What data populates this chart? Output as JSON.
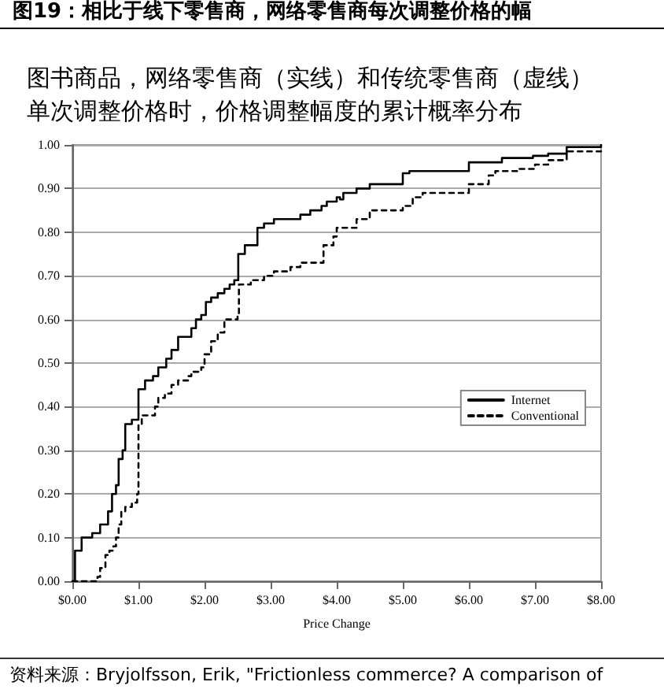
{
  "chart_data": {
    "type": "step",
    "title": "图书商品，网络零售商（实线）和传统零售商（虚线）单次调整价格时，价格调整幅度的累计概率分布",
    "xlabel": "Price Change",
    "annotations": [
      "图19：相比于线下零售商，网络零售商每次调整价格的幅",
      "资料来源：Bryjolfsson, Erik, \"Frictionless commerce? A comparison of"
    ],
    "series": [
      {
        "name": "Internet",
        "color": "#000000",
        "line_style": "solid",
        "x": [
          0,
          0.04,
          0.14,
          0.3,
          0.42,
          0.54,
          0.6,
          0.66,
          0.7,
          0.76,
          0.8,
          0.9,
          1.0,
          1.1,
          1.22,
          1.3,
          1.42,
          1.5,
          1.6,
          1.8,
          1.87,
          1.95,
          2.02,
          2.1,
          2.2,
          2.3,
          2.38,
          2.45,
          2.51,
          2.61,
          2.8,
          2.9,
          3.05,
          3.45,
          3.6,
          3.77,
          3.85,
          4.0,
          4.05,
          4.1,
          4.3,
          4.5,
          5.0,
          5.1,
          6.0,
          6.5,
          6.97,
          7.2,
          7.48,
          8.0
        ],
        "values": [
          0,
          0.07,
          0.1,
          0.11,
          0.13,
          0.16,
          0.2,
          0.22,
          0.28,
          0.3,
          0.36,
          0.37,
          0.44,
          0.46,
          0.47,
          0.49,
          0.51,
          0.53,
          0.56,
          0.58,
          0.6,
          0.61,
          0.64,
          0.65,
          0.66,
          0.67,
          0.68,
          0.69,
          0.75,
          0.77,
          0.81,
          0.82,
          0.83,
          0.84,
          0.85,
          0.86,
          0.87,
          0.88,
          0.875,
          0.89,
          0.9,
          0.91,
          0.935,
          0.94,
          0.96,
          0.97,
          0.975,
          0.98,
          0.995,
          1.0
        ]
      },
      {
        "name": "Conventional",
        "color": "#000000",
        "line_style": "dashed",
        "x": [
          0,
          0.33,
          0.38,
          0.42,
          0.5,
          0.56,
          0.62,
          0.66,
          0.7,
          0.74,
          0.8,
          0.9,
          0.98,
          1.0,
          1.05,
          1.2,
          1.25,
          1.3,
          1.4,
          1.5,
          1.6,
          1.75,
          1.8,
          1.95,
          2.0,
          2.1,
          2.2,
          2.3,
          2.5,
          2.52,
          2.7,
          2.9,
          3.05,
          3.3,
          3.45,
          3.75,
          3.8,
          3.95,
          4.0,
          4.3,
          4.5,
          5.0,
          5.15,
          5.3,
          6.0,
          6.3,
          6.4,
          6.75,
          7.0,
          7.2,
          7.48,
          8.0
        ],
        "values": [
          0,
          0,
          0.01,
          0.03,
          0.06,
          0.07,
          0.08,
          0.1,
          0.13,
          0.16,
          0.17,
          0.18,
          0.2,
          0.36,
          0.38,
          0.38,
          0.4,
          0.42,
          0.43,
          0.45,
          0.46,
          0.47,
          0.48,
          0.49,
          0.52,
          0.55,
          0.57,
          0.6,
          0.61,
          0.68,
          0.69,
          0.7,
          0.71,
          0.72,
          0.73,
          0.73,
          0.77,
          0.79,
          0.81,
          0.83,
          0.85,
          0.86,
          0.88,
          0.89,
          0.91,
          0.93,
          0.94,
          0.945,
          0.955,
          0.965,
          0.985,
          0.99
        ]
      }
    ],
    "xlim": [
      0,
      8
    ],
    "ylim": [
      0,
      1
    ],
    "xticks": [
      {
        "value": 0,
        "label": "$0.00"
      },
      {
        "value": 1,
        "label": "$1.00"
      },
      {
        "value": 2,
        "label": "$2.00"
      },
      {
        "value": 3,
        "label": "$3.00"
      },
      {
        "value": 4,
        "label": "$4.00"
      },
      {
        "value": 5,
        "label": "$5.00"
      },
      {
        "value": 6,
        "label": "$6.00"
      },
      {
        "value": 7,
        "label": "$7.00"
      },
      {
        "value": 8,
        "label": "$8.00"
      }
    ],
    "yticks": [
      {
        "value": 0,
        "label": "0.00"
      },
      {
        "value": 0.1,
        "label": "0.10"
      },
      {
        "value": 0.2,
        "label": "0.20"
      },
      {
        "value": 0.3,
        "label": "0.30"
      },
      {
        "value": 0.4,
        "label": "0.40"
      },
      {
        "value": 0.5,
        "label": "0.50"
      },
      {
        "value": 0.6,
        "label": "0.60"
      },
      {
        "value": 0.7,
        "label": "0.70"
      },
      {
        "value": 0.8,
        "label": "0.80"
      },
      {
        "value": 0.9,
        "label": "0.90"
      },
      {
        "value": 1,
        "label": "1.00"
      }
    ],
    "grid": "y",
    "legend": "right",
    "marker": "none"
  }
}
